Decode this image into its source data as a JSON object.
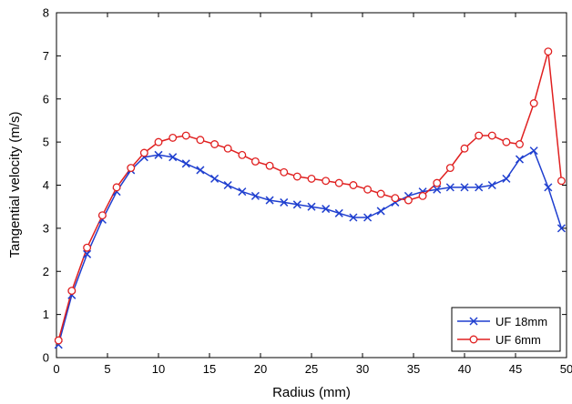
{
  "chart_data": {
    "type": "line",
    "title": "",
    "xlabel": "Radius (mm)",
    "ylabel": "Tangential velocity (m/s)",
    "xlim": [
      0,
      50
    ],
    "ylim": [
      0,
      8
    ],
    "xticks": [
      "0",
      "5",
      "10",
      "15",
      "20",
      "25",
      "30",
      "35",
      "40",
      "45",
      "50"
    ],
    "yticks": [
      "0",
      "1",
      "2",
      "3",
      "4",
      "5",
      "6",
      "7",
      "8"
    ],
    "grid": false,
    "legend": "bottom-right",
    "series": [
      {
        "name": "UF 18mm",
        "color": "#1f3fcf",
        "marker": "x",
        "x": [
          0.2,
          1.5,
          3.0,
          4.5,
          5.9,
          7.3,
          8.6,
          10.0,
          11.4,
          12.7,
          14.1,
          15.5,
          16.8,
          18.2,
          19.5,
          20.9,
          22.3,
          23.6,
          25.0,
          26.4,
          27.7,
          29.1,
          30.5,
          31.8,
          33.2,
          34.5,
          35.9,
          37.3,
          38.6,
          40.0,
          41.4,
          42.7,
          44.1,
          45.4,
          46.8,
          48.2,
          49.5
        ],
        "y": [
          0.3,
          1.45,
          2.4,
          3.2,
          3.85,
          4.35,
          4.65,
          4.7,
          4.65,
          4.5,
          4.35,
          4.15,
          4.0,
          3.85,
          3.75,
          3.65,
          3.6,
          3.55,
          3.5,
          3.45,
          3.35,
          3.25,
          3.25,
          3.4,
          3.6,
          3.75,
          3.85,
          3.9,
          3.95,
          3.95,
          3.95,
          4.0,
          4.15,
          4.6,
          4.8,
          3.95,
          3.0
        ]
      },
      {
        "name": "UF 6mm",
        "color": "#e02020",
        "marker": "o",
        "x": [
          0.2,
          1.5,
          3.0,
          4.5,
          5.9,
          7.3,
          8.6,
          10.0,
          11.4,
          12.7,
          14.1,
          15.5,
          16.8,
          18.2,
          19.5,
          20.9,
          22.3,
          23.6,
          25.0,
          26.4,
          27.7,
          29.1,
          30.5,
          31.8,
          33.2,
          34.5,
          35.9,
          37.3,
          38.6,
          40.0,
          41.4,
          42.7,
          44.1,
          45.4,
          46.8,
          48.2,
          49.5
        ],
        "y": [
          0.4,
          1.55,
          2.55,
          3.3,
          3.95,
          4.4,
          4.75,
          5.0,
          5.1,
          5.15,
          5.05,
          4.95,
          4.85,
          4.7,
          4.55,
          4.45,
          4.3,
          4.2,
          4.15,
          4.1,
          4.05,
          4.0,
          3.9,
          3.8,
          3.7,
          3.65,
          3.75,
          4.05,
          4.4,
          4.85,
          5.15,
          5.15,
          5.0,
          4.95,
          5.9,
          7.1,
          4.1
        ]
      }
    ]
  }
}
